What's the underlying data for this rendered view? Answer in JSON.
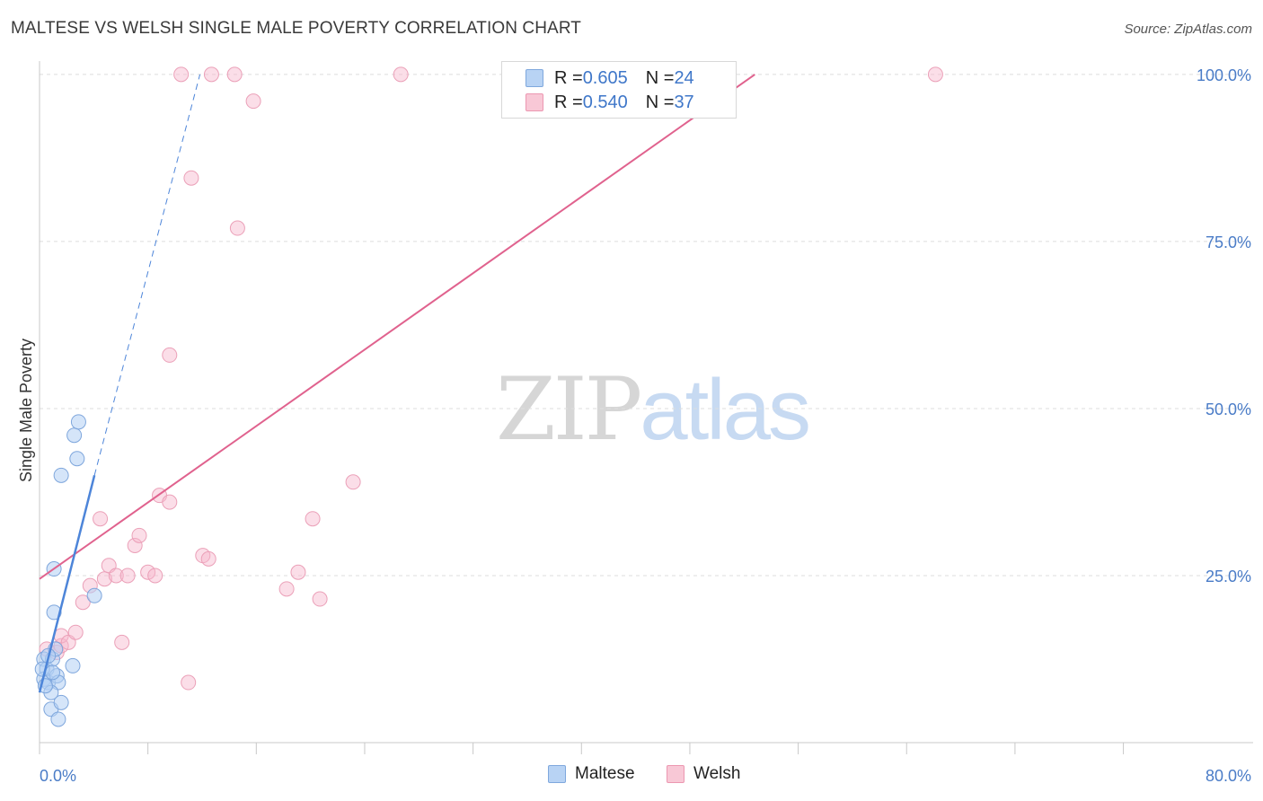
{
  "title": "MALTESE VS WELSH SINGLE MALE POVERTY CORRELATION CHART",
  "source": "Source: ZipAtlas.com",
  "watermark": {
    "zip": "ZIP",
    "atlas": "atlas"
  },
  "legend": {
    "rows": [
      {
        "r_label": "R = ",
        "r_value": "0.605",
        "n_label": "N = ",
        "n_value": "24",
        "fill": "#b8d3f4",
        "stroke": "#7fa8dd"
      },
      {
        "r_label": "R = ",
        "r_value": "0.540",
        "n_label": "N = ",
        "n_value": "37",
        "fill": "#f8c8d6",
        "stroke": "#ec97b1"
      }
    ]
  },
  "bottom_legend": [
    {
      "label": "Maltese",
      "fill": "#b8d3f4",
      "stroke": "#7fa8dd"
    },
    {
      "label": "Welsh",
      "fill": "#f8c8d6",
      "stroke": "#ec97b1"
    }
  ],
  "colors": {
    "maltese": "#4d85d9",
    "welsh": "#e0628e",
    "grid": "#dddddd"
  },
  "chart_data": {
    "type": "scatter",
    "title": "MALTESE VS WELSH SINGLE MALE POVERTY CORRELATION CHART",
    "xlabel": "",
    "ylabel": "Single Male Poverty",
    "xlim": [
      0,
      80
    ],
    "ylim": [
      0,
      102
    ],
    "x_tick_labels": [
      "0.0%",
      "80.0%"
    ],
    "y_ticks": [
      25,
      50,
      75,
      100
    ],
    "y_tick_labels": [
      "25.0%",
      "50.0%",
      "75.0%",
      "100.0%"
    ],
    "grid": true,
    "series": [
      {
        "name": "Maltese",
        "R": 0.605,
        "N": 24,
        "points": [
          [
            0.3,
            12.5
          ],
          [
            0.5,
            11.0
          ],
          [
            0.3,
            9.5
          ],
          [
            0.6,
            9.0
          ],
          [
            1.0,
            26.0
          ],
          [
            1.0,
            19.5
          ],
          [
            0.9,
            12.5
          ],
          [
            1.1,
            14.0
          ],
          [
            1.2,
            10.0
          ],
          [
            1.3,
            9.0
          ],
          [
            0.8,
            7.5
          ],
          [
            0.8,
            5.0
          ],
          [
            1.5,
            6.0
          ],
          [
            1.3,
            3.5
          ],
          [
            1.5,
            40.0
          ],
          [
            2.4,
            46.0
          ],
          [
            2.7,
            48.0
          ],
          [
            2.6,
            42.5
          ],
          [
            3.8,
            22.0
          ],
          [
            2.3,
            11.5
          ],
          [
            0.4,
            8.5
          ],
          [
            0.6,
            13.0
          ],
          [
            0.2,
            11.0
          ],
          [
            0.9,
            10.5
          ]
        ],
        "trendline": {
          "x": [
            0.0,
            3.8
          ],
          "y": [
            7.5,
            40.0
          ]
        },
        "trendline_extension": {
          "x": [
            3.8,
            11.1
          ],
          "y": [
            40.0,
            100.0
          ]
        }
      },
      {
        "name": "Welsh",
        "R": 0.54,
        "N": 37,
        "points": [
          [
            0.5,
            14.0
          ],
          [
            1.2,
            13.5
          ],
          [
            1.5,
            14.5
          ],
          [
            1.5,
            16.0
          ],
          [
            2.0,
            15.0
          ],
          [
            2.5,
            16.5
          ],
          [
            3.0,
            21.0
          ],
          [
            3.5,
            23.5
          ],
          [
            4.2,
            33.5
          ],
          [
            4.5,
            24.5
          ],
          [
            4.8,
            26.5
          ],
          [
            5.3,
            25.0
          ],
          [
            5.7,
            15.0
          ],
          [
            6.1,
            25.0
          ],
          [
            6.6,
            29.5
          ],
          [
            6.9,
            31.0
          ],
          [
            7.5,
            25.5
          ],
          [
            8.0,
            25.0
          ],
          [
            8.3,
            37.0
          ],
          [
            9.0,
            36.0
          ],
          [
            9.0,
            58.0
          ],
          [
            10.3,
            9.0
          ],
          [
            10.5,
            84.5
          ],
          [
            11.3,
            28.0
          ],
          [
            11.7,
            27.5
          ],
          [
            13.7,
            77.0
          ],
          [
            14.8,
            96.0
          ],
          [
            17.1,
            23.0
          ],
          [
            17.9,
            25.5
          ],
          [
            18.9,
            33.5
          ],
          [
            19.4,
            21.5
          ],
          [
            21.7,
            39.0
          ],
          [
            9.8,
            100.0
          ],
          [
            11.9,
            100.0
          ],
          [
            13.5,
            100.0
          ],
          [
            25.0,
            100.0
          ],
          [
            62.0,
            100.0
          ]
        ],
        "trendline": {
          "x": [
            0.0,
            49.5
          ],
          "y": [
            24.5,
            100.0
          ]
        }
      }
    ]
  }
}
